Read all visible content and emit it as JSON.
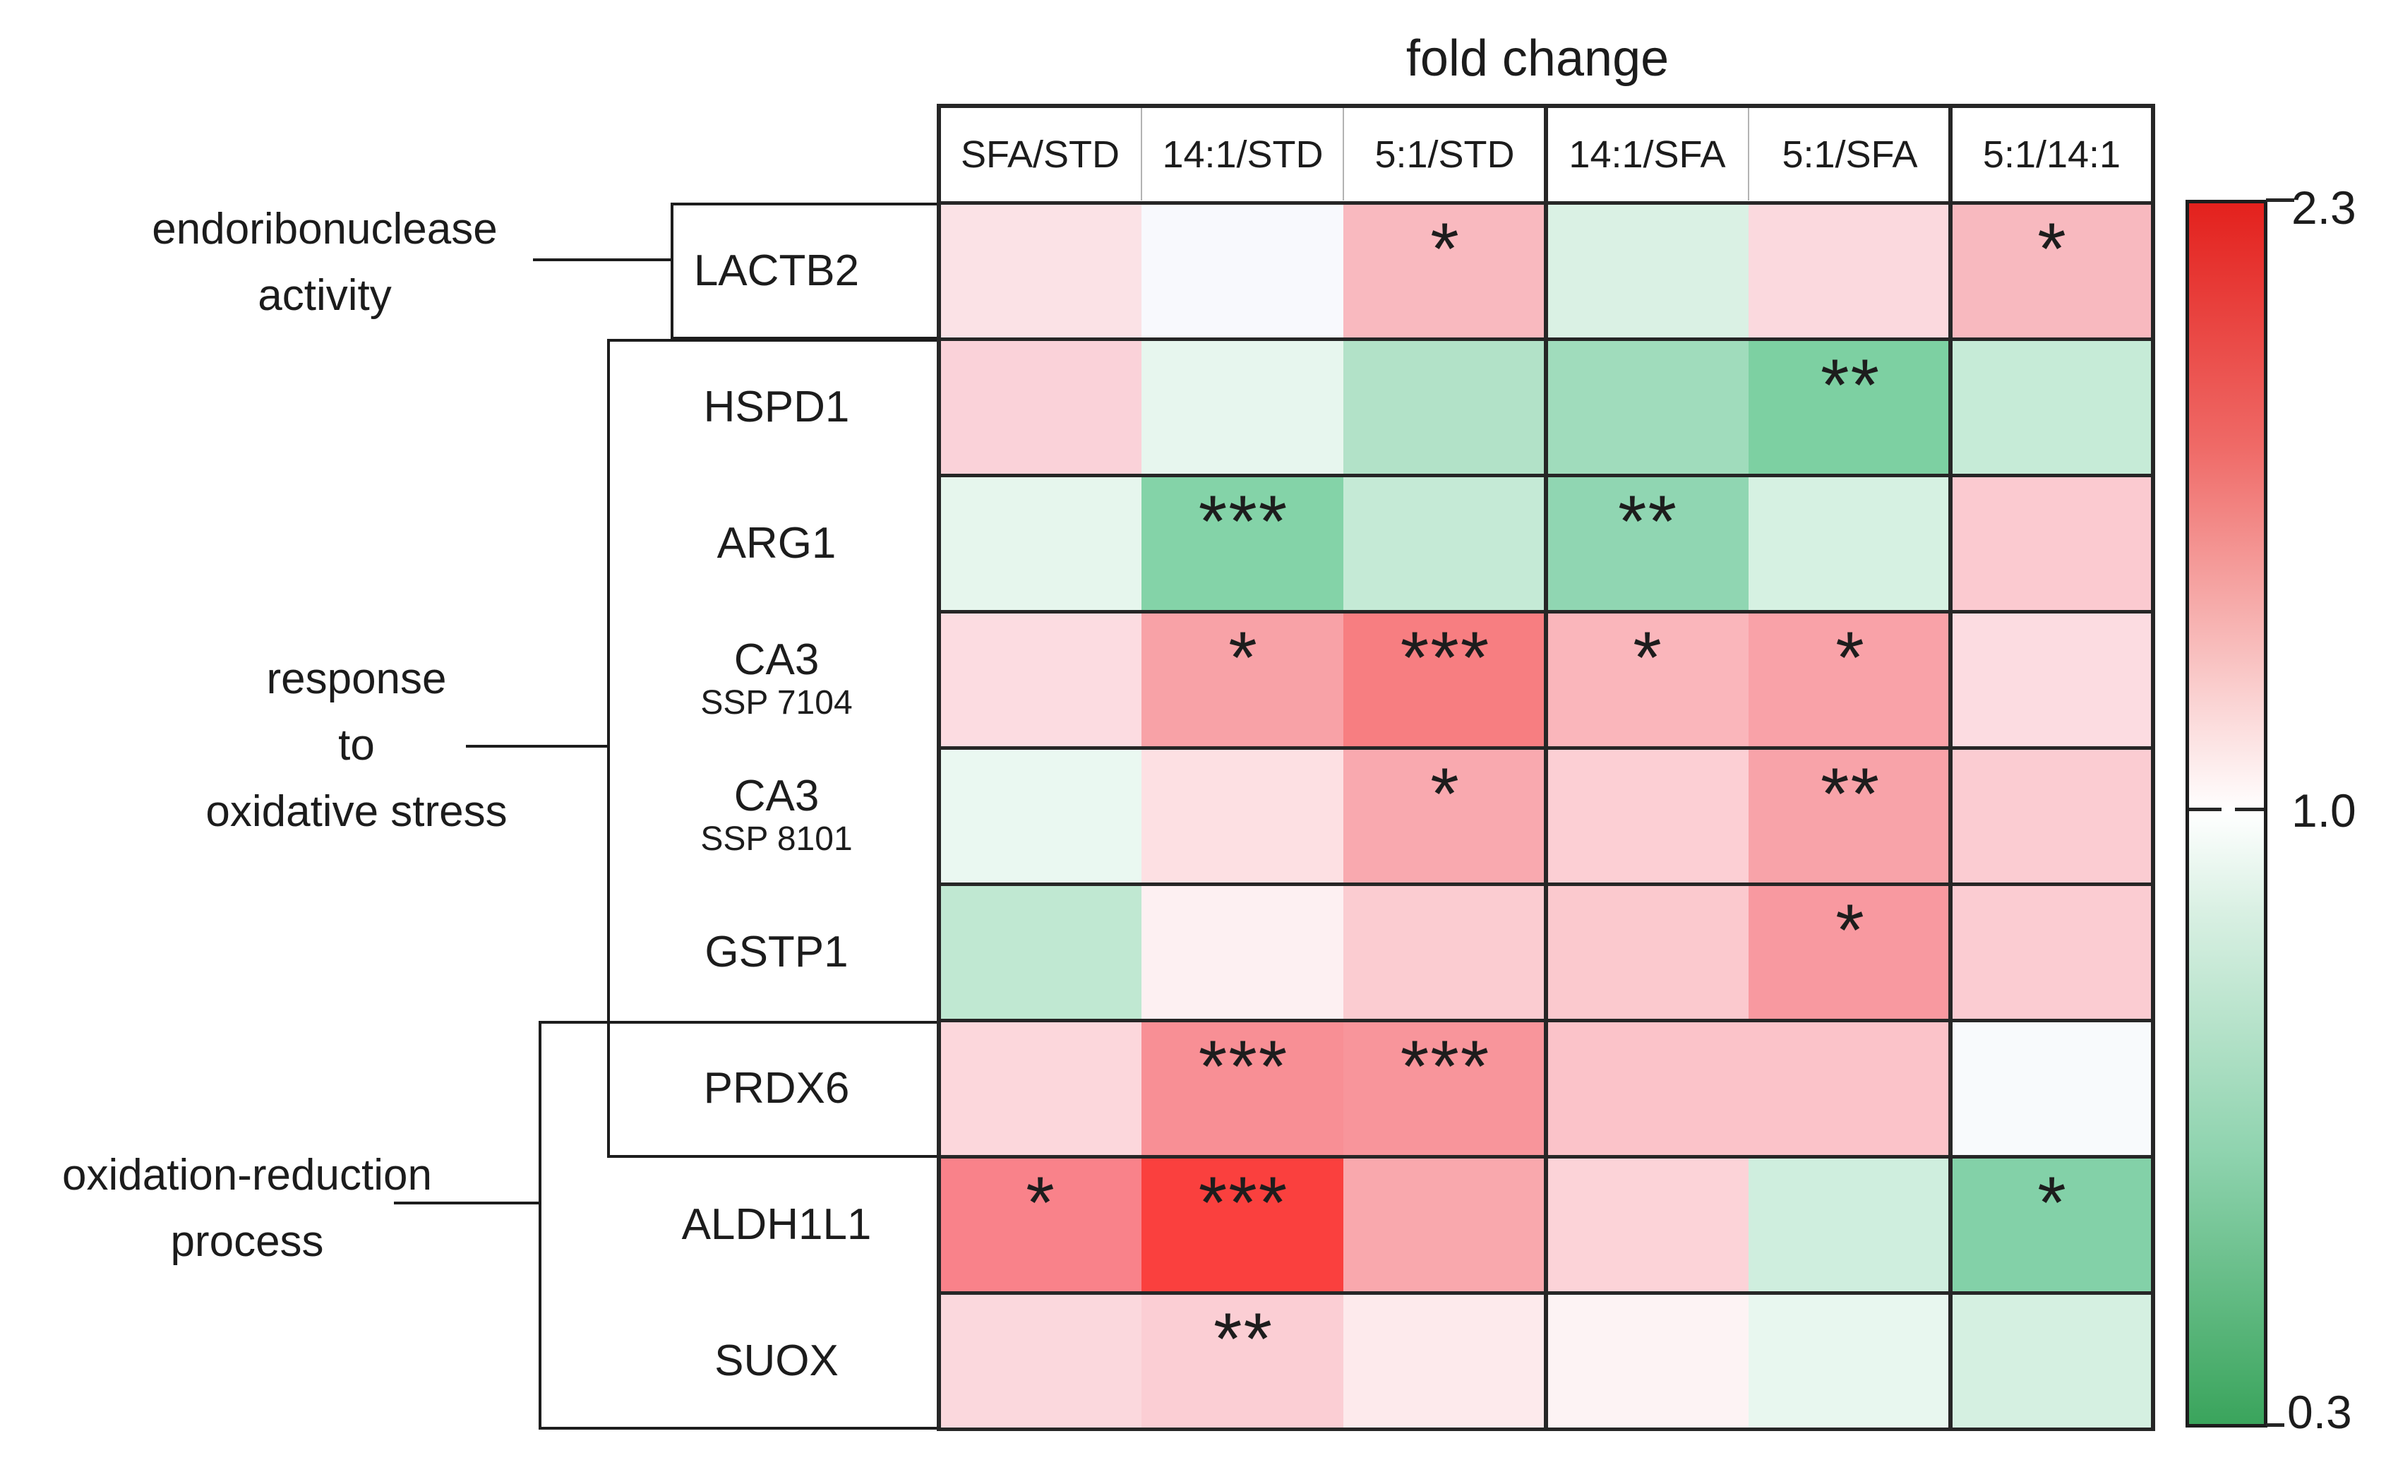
{
  "title": "fold change",
  "colorbar": {
    "max_label": "2.3",
    "mid_label": "1.0",
    "min_label": "0.3",
    "max_color": "#e3211d",
    "mid_color": "#ffffff",
    "min_color": "#3aa45c"
  },
  "groups": [
    {
      "id": "endoribonuclease-activity",
      "label_lines": [
        "endoribonuclease",
        "activity"
      ]
    },
    {
      "id": "response-to-oxidative-stress",
      "label_lines": [
        "response",
        "to",
        "oxidative stress"
      ]
    },
    {
      "id": "oxidation-reduction-process",
      "label_lines": [
        "oxidation-reduction",
        "process"
      ]
    }
  ],
  "heatmap": {
    "columns": [
      "SFA/STD",
      "14:1/STD",
      "5:1/STD",
      "14:1/SFA",
      "5:1/SFA",
      "5:1/14:1"
    ],
    "rows": [
      {
        "gene": "LACTB2",
        "sublabel": "",
        "cells": [
          {
            "color": "#fbe2e6",
            "stars": ""
          },
          {
            "color": "#f8f9fd",
            "stars": ""
          },
          {
            "color": "#f9b9bf",
            "stars": "*"
          },
          {
            "color": "#daf1e4",
            "stars": ""
          },
          {
            "color": "#fbd9de",
            "stars": ""
          },
          {
            "color": "#f8b9bf",
            "stars": "*"
          }
        ]
      },
      {
        "gene": "HSPD1",
        "sublabel": "",
        "cells": [
          {
            "color": "#fad2d9",
            "stars": ""
          },
          {
            "color": "#e7f6ee",
            "stars": ""
          },
          {
            "color": "#b2e2c8",
            "stars": ""
          },
          {
            "color": "#a0dcbc",
            "stars": ""
          },
          {
            "color": "#7dd0a2",
            "stars": "**"
          },
          {
            "color": "#c6ebd7",
            "stars": ""
          }
        ]
      },
      {
        "gene": "ARG1",
        "sublabel": "",
        "cells": [
          {
            "color": "#e6f6ed",
            "stars": ""
          },
          {
            "color": "#84d3a8",
            "stars": "***"
          },
          {
            "color": "#c5ead6",
            "stars": ""
          },
          {
            "color": "#90d6b2",
            "stars": "**"
          },
          {
            "color": "#d6f1e2",
            "stars": ""
          },
          {
            "color": "#fbcad0",
            "stars": ""
          }
        ]
      },
      {
        "gene": "CA3",
        "sublabel": "SSP 7104",
        "cells": [
          {
            "color": "#fcdce1",
            "stars": ""
          },
          {
            "color": "#f8a2a7",
            "stars": "*"
          },
          {
            "color": "#f77e81",
            "stars": "***"
          },
          {
            "color": "#fab6bb",
            "stars": "*"
          },
          {
            "color": "#f9a2a8",
            "stars": "*"
          },
          {
            "color": "#fcdce1",
            "stars": ""
          }
        ]
      },
      {
        "gene": "CA3",
        "sublabel": "SSP 8101",
        "cells": [
          {
            "color": "#eaf8f1",
            "stars": ""
          },
          {
            "color": "#fde0e3",
            "stars": ""
          },
          {
            "color": "#f9a9af",
            "stars": "*"
          },
          {
            "color": "#fccfd4",
            "stars": ""
          },
          {
            "color": "#f8a3a9",
            "stars": "**"
          },
          {
            "color": "#fbccd2",
            "stars": ""
          }
        ]
      },
      {
        "gene": "GSTP1",
        "sublabel": "",
        "cells": [
          {
            "color": "#c0e8d2",
            "stars": ""
          },
          {
            "color": "#fdf0f2",
            "stars": ""
          },
          {
            "color": "#fbccd1",
            "stars": ""
          },
          {
            "color": "#fbc9ce",
            "stars": ""
          },
          {
            "color": "#f899a0",
            "stars": "*"
          },
          {
            "color": "#fbccd2",
            "stars": ""
          }
        ]
      },
      {
        "gene": "PRDX6",
        "sublabel": "",
        "cells": [
          {
            "color": "#fcd7dc",
            "stars": ""
          },
          {
            "color": "#f88f95",
            "stars": "***"
          },
          {
            "color": "#f8959b",
            "stars": "***"
          },
          {
            "color": "#fbc3c9",
            "stars": ""
          },
          {
            "color": "#fbc3c9",
            "stars": ""
          },
          {
            "color": "#f8fafc",
            "stars": ""
          }
        ]
      },
      {
        "gene": "ALDH1L1",
        "sublabel": "",
        "cells": [
          {
            "color": "#f9828a",
            "stars": "*"
          },
          {
            "color": "#fa403e",
            "stars": "***"
          },
          {
            "color": "#f9a8ad",
            "stars": ""
          },
          {
            "color": "#fcd3d8",
            "stars": ""
          },
          {
            "color": "#cfeede",
            "stars": ""
          },
          {
            "color": "#83d1a8",
            "stars": "*"
          }
        ]
      },
      {
        "gene": "SUOX",
        "sublabel": "",
        "cells": [
          {
            "color": "#fbd8dd",
            "stars": ""
          },
          {
            "color": "#fbced4",
            "stars": "**"
          },
          {
            "color": "#fdeaec",
            "stars": ""
          },
          {
            "color": "#fdf3f4",
            "stars": ""
          },
          {
            "color": "#e8f7ef",
            "stars": ""
          },
          {
            "color": "#d5f0e1",
            "stars": ""
          }
        ]
      }
    ]
  },
  "chart_data": {
    "type": "heatmap",
    "title": "fold change",
    "columns": [
      "SFA/STD",
      "14:1/STD",
      "5:1/STD",
      "14:1/SFA",
      "5:1/SFA",
      "5:1/14:1"
    ],
    "rows": [
      "LACTB2",
      "HSPD1",
      "ARG1",
      "CA3 SSP 7104",
      "CA3 SSP 8101",
      "GSTP1",
      "PRDX6",
      "ALDH1L1",
      "SUOX"
    ],
    "row_groups": [
      {
        "label": "endoribonuclease activity",
        "rows": [
          "LACTB2"
        ]
      },
      {
        "label": "response to oxidative stress",
        "rows": [
          "HSPD1",
          "ARG1",
          "CA3 SSP 7104",
          "CA3 SSP 8101",
          "GSTP1",
          "PRDX6"
        ]
      },
      {
        "label": "oxidation-reduction process",
        "rows": [
          "PRDX6",
          "ALDH1L1",
          "SUOX"
        ]
      }
    ],
    "values": [
      [
        1.15,
        1.0,
        1.4,
        0.85,
        1.2,
        1.4
      ],
      [
        1.25,
        0.9,
        0.7,
        0.62,
        0.48,
        0.77
      ],
      [
        0.9,
        0.47,
        0.75,
        0.57,
        0.83,
        1.3
      ],
      [
        1.18,
        1.55,
        1.8,
        1.4,
        1.55,
        1.18
      ],
      [
        0.92,
        1.12,
        1.5,
        1.28,
        1.55,
        1.28
      ],
      [
        0.73,
        1.05,
        1.28,
        1.3,
        1.6,
        1.28
      ],
      [
        1.22,
        1.65,
        1.62,
        1.35,
        1.35,
        1.0
      ],
      [
        1.85,
        2.2,
        1.52,
        1.25,
        0.8,
        0.5
      ],
      [
        1.2,
        1.28,
        1.1,
        1.05,
        0.9,
        0.82
      ]
    ],
    "significance": [
      [
        "",
        "",
        "*",
        "",
        "",
        "*"
      ],
      [
        "",
        "",
        "",
        "",
        "**",
        ""
      ],
      [
        "",
        "***",
        "",
        "**",
        "",
        ""
      ],
      [
        "",
        "*",
        "***",
        "*",
        "*",
        ""
      ],
      [
        "",
        "",
        "*",
        "",
        "**",
        ""
      ],
      [
        "",
        "",
        "",
        "",
        "*",
        ""
      ],
      [
        "",
        "***",
        "***",
        "",
        "",
        ""
      ],
      [
        "*",
        "***",
        "",
        "",
        "",
        "*"
      ],
      [
        "",
        "**",
        "",
        "",
        "",
        ""
      ]
    ],
    "scale": {
      "min": 0.3,
      "mid": 1.0,
      "max": 2.3,
      "min_color": "#3aa45c",
      "mid_color": "#ffffff",
      "max_color": "#e3211d"
    },
    "legend_position": "right",
    "grid": true
  }
}
